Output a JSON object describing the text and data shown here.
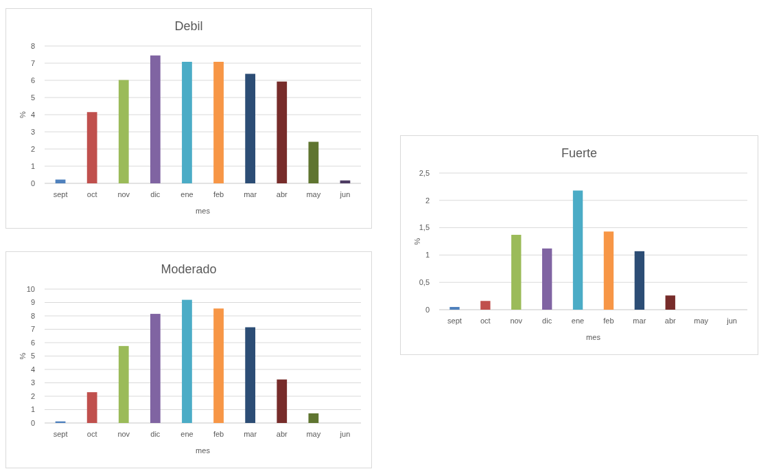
{
  "chart_data": [
    {
      "type": "bar",
      "title": "Debil",
      "xlabel": "mes",
      "ylabel": "%",
      "categories": [
        "sept",
        "oct",
        "nov",
        "dic",
        "ene",
        "feb",
        "mar",
        "abr",
        "may",
        "jun"
      ],
      "values": [
        0.22,
        4.15,
        6.02,
        7.45,
        7.08,
        7.08,
        6.38,
        5.93,
        2.42,
        0.17
      ],
      "colors": [
        "#4f81bd",
        "#c0504d",
        "#9bbb59",
        "#8064a2",
        "#4bacc6",
        "#f79646",
        "#2c4d75",
        "#772c2a",
        "#5f7530",
        "#4d3b62"
      ],
      "ylim": [
        0,
        8
      ],
      "yticks": [
        0,
        1,
        2,
        3,
        4,
        5,
        6,
        7,
        8
      ],
      "grid": "y"
    },
    {
      "type": "bar",
      "title": "Fuerte",
      "xlabel": "mes",
      "ylabel": "%",
      "categories": [
        "sept",
        "oct",
        "nov",
        "dic",
        "ene",
        "feb",
        "mar",
        "abr",
        "may",
        "jun"
      ],
      "values": [
        0.05,
        0.16,
        1.37,
        1.12,
        2.18,
        1.43,
        1.07,
        0.26,
        0,
        0
      ],
      "colors": [
        "#4f81bd",
        "#c0504d",
        "#9bbb59",
        "#8064a2",
        "#4bacc6",
        "#f79646",
        "#2c4d75",
        "#772c2a",
        "#5f7530",
        "#4d3b62"
      ],
      "ylim": [
        0,
        2.5
      ],
      "yticks": [
        0,
        {
          "value": 0.5,
          "label": "0,5"
        },
        1,
        {
          "value": 1.5,
          "label": "1,5"
        },
        2,
        {
          "value": 2.5,
          "label": "2,5"
        }
      ],
      "grid": "y"
    },
    {
      "type": "bar",
      "title": "Moderado",
      "xlabel": "mes",
      "ylabel": "%",
      "categories": [
        "sept",
        "oct",
        "nov",
        "dic",
        "ene",
        "feb",
        "mar",
        "abr",
        "may",
        "jun"
      ],
      "values": [
        0.12,
        2.3,
        5.75,
        8.15,
        9.2,
        8.55,
        7.15,
        3.25,
        0.72,
        0
      ],
      "colors": [
        "#4f81bd",
        "#c0504d",
        "#9bbb59",
        "#8064a2",
        "#4bacc6",
        "#f79646",
        "#2c4d75",
        "#772c2a",
        "#5f7530",
        "#4d3b62"
      ],
      "ylim": [
        0,
        10
      ],
      "yticks": [
        0,
        1,
        2,
        3,
        4,
        5,
        6,
        7,
        8,
        9,
        10
      ],
      "grid": "y"
    }
  ]
}
